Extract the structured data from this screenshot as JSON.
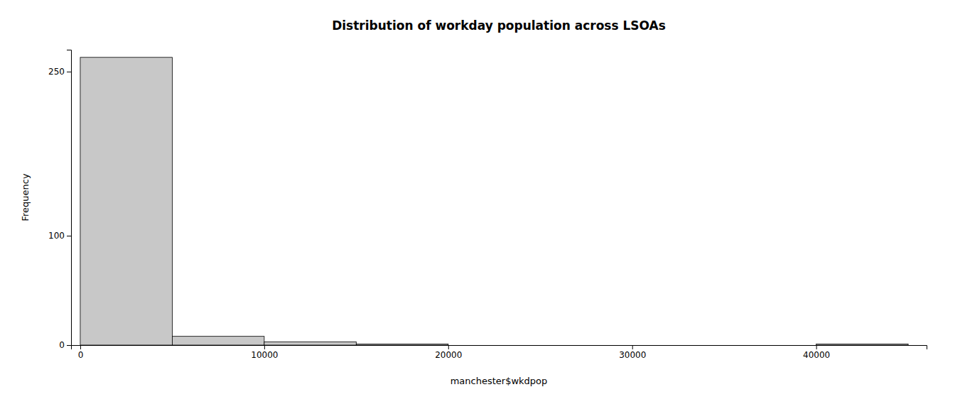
{
  "chart_data": {
    "type": "histogram",
    "title": "Distribution of workday population across LSOAs",
    "xlabel": "manchester$wkdpop",
    "ylabel": "Frequency",
    "bins": [
      0,
      5000,
      10000,
      15000,
      20000,
      25000,
      30000,
      35000,
      40000,
      45000
    ],
    "values": [
      263,
      8,
      3,
      1,
      0,
      0,
      0,
      0,
      1
    ],
    "color": "#c8c8c8",
    "xlim": [
      -500,
      46000
    ],
    "ylim": [
      0,
      270
    ],
    "xticks": [
      0,
      10000,
      20000,
      30000,
      40000
    ],
    "yticks": [
      0,
      100,
      250
    ],
    "grid": false
  }
}
